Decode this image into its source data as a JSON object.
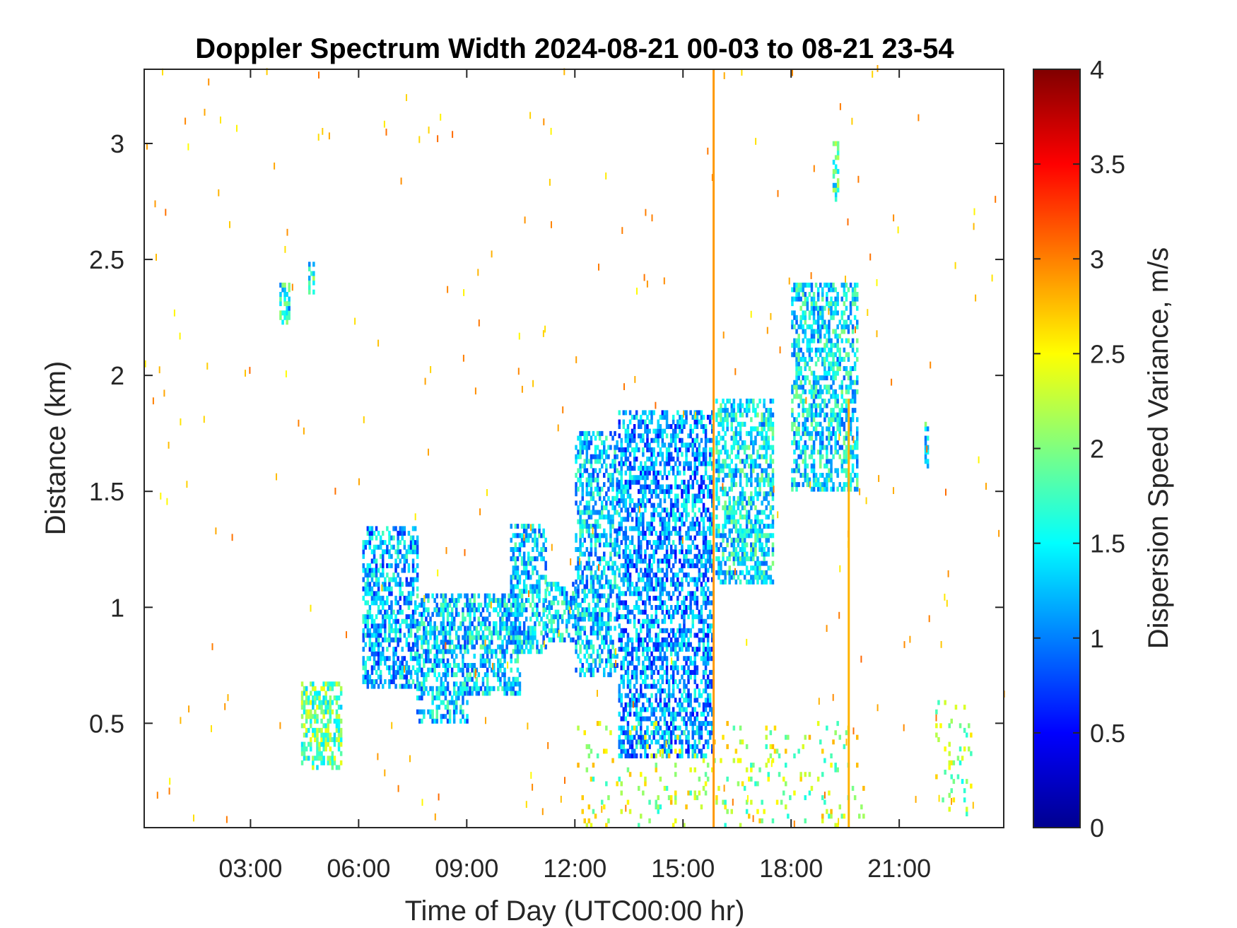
{
  "chart_data": {
    "type": "heatmap",
    "title": "Doppler Spectrum Width 2024-08-21 00-03 to 08-21 23-54",
    "xlabel": "Time of Day (UTC00:00 hr)",
    "ylabel": "Distance (km)",
    "colorbar_label": "Dispersion Speed Variance, m/s",
    "colormap": "jet",
    "xlim": [
      0.05,
      23.9
    ],
    "ylim": [
      0.05,
      3.32
    ],
    "clim": [
      0,
      4
    ],
    "x_ticks": [
      3,
      6,
      9,
      12,
      15,
      18,
      21
    ],
    "x_tick_labels": [
      "03:00",
      "06:00",
      "09:00",
      "12:00",
      "15:00",
      "18:00",
      "21:00"
    ],
    "y_ticks": [
      0.5,
      1,
      1.5,
      2,
      2.5,
      3
    ],
    "y_tick_labels": [
      "0.5",
      "1",
      "1.5",
      "2",
      "2.5",
      "3"
    ],
    "colorbar_ticks": [
      0,
      0.5,
      1,
      1.5,
      2,
      2.5,
      3,
      3.5,
      4
    ],
    "colorbar_tick_labels": [
      "0",
      "0.5",
      "1",
      "1.5",
      "2",
      "2.5",
      "3",
      "3.5",
      "4"
    ],
    "vertical_lines": [
      {
        "x": 15.85,
        "y_from": 0.05,
        "y_to": 3.32,
        "value": 2.9
      },
      {
        "x": 19.6,
        "y_from": 0.05,
        "y_to": 1.9,
        "value": 2.8
      }
    ],
    "regions": [
      {
        "x_from": 6.1,
        "x_to": 7.6,
        "y_from": 0.65,
        "y_to": 1.35,
        "value_mean": 1.2
      },
      {
        "x_from": 7.6,
        "x_to": 9.0,
        "y_from": 0.5,
        "y_to": 1.05,
        "value_mean": 1.3
      },
      {
        "x_from": 9.0,
        "x_to": 10.5,
        "y_from": 0.62,
        "y_to": 1.05,
        "value_mean": 1.35
      },
      {
        "x_from": 10.2,
        "x_to": 11.2,
        "y_from": 0.8,
        "y_to": 1.35,
        "value_mean": 1.35
      },
      {
        "x_from": 11.2,
        "x_to": 12.0,
        "y_from": 0.85,
        "y_to": 1.1,
        "value_mean": 1.35
      },
      {
        "x_from": 12.0,
        "x_to": 13.2,
        "y_from": 0.7,
        "y_to": 1.75,
        "value_mean": 1.3
      },
      {
        "x_from": 13.2,
        "x_to": 15.8,
        "y_from": 0.35,
        "y_to": 1.85,
        "value_mean": 1.1
      },
      {
        "x_from": 15.9,
        "x_to": 17.5,
        "y_from": 1.1,
        "y_to": 1.9,
        "value_mean": 1.45
      },
      {
        "x_from": 18.0,
        "x_to": 19.8,
        "y_from": 1.5,
        "y_to": 2.4,
        "value_mean": 1.45
      },
      {
        "x_from": 3.8,
        "x_to": 4.1,
        "y_from": 2.22,
        "y_to": 2.4,
        "value_mean": 1.5
      },
      {
        "x_from": 4.6,
        "x_to": 4.75,
        "y_from": 2.35,
        "y_to": 2.48,
        "value_mean": 1.6
      },
      {
        "x_from": 4.4,
        "x_to": 5.5,
        "y_from": 0.3,
        "y_to": 0.68,
        "value_mean": 1.9
      },
      {
        "x_from": 21.7,
        "x_to": 21.8,
        "y_from": 1.6,
        "y_to": 1.8,
        "value_mean": 1.5
      },
      {
        "x_from": 19.15,
        "x_to": 19.3,
        "y_from": 2.75,
        "y_to": 3.0,
        "value_mean": 1.7
      },
      {
        "x_from": 22.0,
        "x_to": 23.0,
        "y_from": 0.1,
        "y_to": 0.6,
        "value_mean": 2.1
      },
      {
        "x_from": 12.0,
        "x_to": 20.0,
        "y_from": 0.05,
        "y_to": 0.5,
        "value_mean": 2.2
      }
    ],
    "noise": {
      "x_from": 0.05,
      "x_to": 23.9,
      "y_from": 0.05,
      "y_to": 3.32,
      "value": 2.8
    }
  }
}
